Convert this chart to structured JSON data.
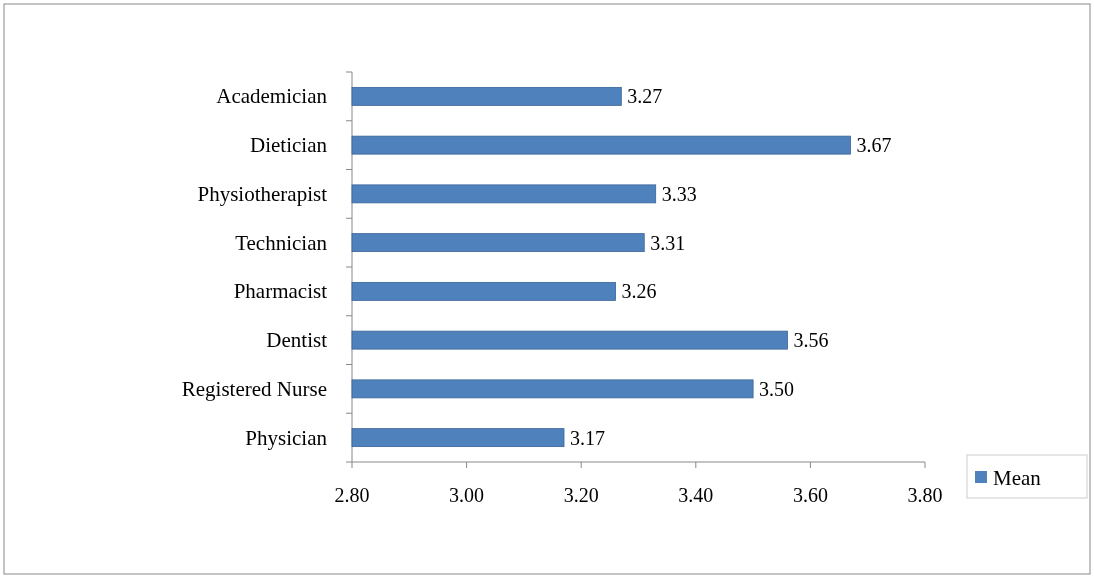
{
  "chart_data": {
    "type": "bar",
    "orientation": "horizontal",
    "categories": [
      "Academician",
      "Dietician",
      "Physiotherapist",
      "Technician",
      "Pharmacist",
      "Dentist",
      "Registered Nurse",
      "Physician"
    ],
    "series": [
      {
        "name": "Mean",
        "color": "#4f81bd",
        "values": [
          3.27,
          3.67,
          3.33,
          3.31,
          3.26,
          3.56,
          3.5,
          3.17
        ],
        "value_labels": [
          "3.27",
          "3.67",
          "3.33",
          "3.31",
          "3.26",
          "3.56",
          "3.50",
          "3.17"
        ]
      }
    ],
    "xlim": [
      2.8,
      3.8
    ],
    "xticks": [
      {
        "value": 2.8,
        "label": "2.80"
      },
      {
        "value": 3.0,
        "label": "3.00"
      },
      {
        "value": 3.2,
        "label": "3.20"
      },
      {
        "value": 3.4,
        "label": "3.40"
      },
      {
        "value": 3.6,
        "label": "3.60"
      },
      {
        "value": 3.8,
        "label": "3.80"
      }
    ],
    "legend": "bottom right"
  }
}
